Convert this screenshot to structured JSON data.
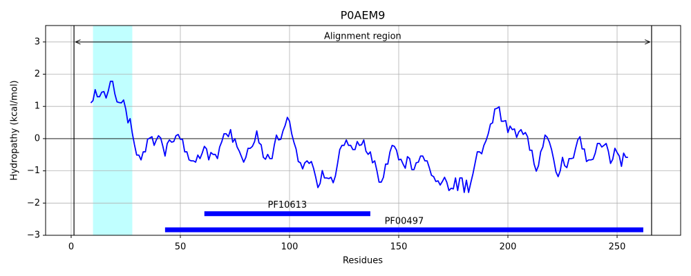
{
  "chart_data": {
    "type": "line",
    "title": "P0AEM9",
    "x_label": "Residues",
    "y_label": "Hydropathy (kcal/mol)",
    "x": [
      9,
      10,
      11,
      12,
      13,
      14,
      15,
      16,
      17,
      18,
      19,
      20,
      21,
      22,
      23,
      24,
      25,
      26,
      27,
      28,
      29,
      30,
      31,
      32,
      33,
      34,
      35,
      36,
      37,
      38,
      39,
      40,
      41,
      42,
      43,
      44,
      45,
      46,
      47,
      48,
      49,
      50,
      51,
      52,
      53,
      54,
      55,
      56,
      57,
      58,
      59,
      60,
      61,
      62,
      63,
      64,
      65,
      66,
      67,
      68,
      69,
      70,
      71,
      72,
      73,
      74,
      75,
      76,
      77,
      78,
      79,
      80,
      81,
      82,
      83,
      84,
      85,
      86,
      87,
      88,
      89,
      90,
      91,
      92,
      93,
      94,
      95,
      96,
      97,
      98,
      99,
      100,
      101,
      102,
      103,
      104,
      105,
      106,
      107,
      108,
      109,
      110,
      111,
      112,
      113,
      114,
      115,
      116,
      117,
      118,
      119,
      120,
      121,
      122,
      123,
      124,
      125,
      126,
      127,
      128,
      129,
      130,
      131,
      132,
      133,
      134,
      135,
      136,
      137,
      138,
      139,
      140,
      141,
      142,
      143,
      144,
      145,
      146,
      147,
      148,
      149,
      150,
      151,
      152,
      153,
      154,
      155,
      156,
      157,
      158,
      159,
      160,
      161,
      162,
      163,
      164,
      165,
      166,
      167,
      168,
      169,
      170,
      171,
      172,
      173,
      174,
      175,
      176,
      177,
      178,
      179,
      180,
      181,
      182,
      183,
      184,
      185,
      186,
      187,
      188,
      189,
      190,
      191,
      192,
      193,
      194,
      195,
      196,
      197,
      198,
      199,
      200,
      201,
      202,
      203,
      204,
      205,
      206,
      207,
      208,
      209,
      210,
      211,
      212,
      213,
      214,
      215,
      216,
      217,
      218,
      219,
      220,
      221,
      222,
      223,
      224,
      225,
      226,
      227,
      228,
      229,
      230,
      231,
      232,
      233,
      234,
      235,
      236,
      237,
      238,
      239,
      240,
      241,
      242,
      243,
      244,
      245,
      246,
      247,
      248,
      249,
      250,
      251,
      252,
      253,
      254,
      255
    ],
    "values": [
      1.11,
      1.18,
      1.52,
      1.3,
      1.3,
      1.44,
      1.46,
      1.26,
      1.48,
      1.78,
      1.78,
      1.39,
      1.14,
      1.12,
      1.11,
      1.2,
      0.92,
      0.49,
      0.62,
      0.17,
      -0.19,
      -0.51,
      -0.51,
      -0.66,
      -0.41,
      -0.41,
      -0.02,
      0.02,
      0.06,
      -0.21,
      -0.04,
      0.09,
      0.02,
      -0.24,
      -0.54,
      -0.15,
      -0.04,
      -0.11,
      -0.09,
      0.09,
      0.13,
      -0.02,
      -0.02,
      -0.41,
      -0.41,
      -0.66,
      -0.69,
      -0.69,
      -0.73,
      -0.51,
      -0.62,
      -0.45,
      -0.24,
      -0.32,
      -0.66,
      -0.43,
      -0.49,
      -0.49,
      -0.62,
      -0.26,
      -0.09,
      0.15,
      0.15,
      0.06,
      0.28,
      -0.11,
      0,
      -0.26,
      -0.39,
      -0.56,
      -0.73,
      -0.58,
      -0.3,
      -0.3,
      -0.24,
      -0.09,
      0.24,
      -0.13,
      -0.19,
      -0.58,
      -0.64,
      -0.49,
      -0.62,
      -0.62,
      -0.21,
      0.11,
      -0.04,
      -0.02,
      0.24,
      0.41,
      0.66,
      0.54,
      0.15,
      -0.11,
      -0.32,
      -0.71,
      -0.75,
      -0.94,
      -0.75,
      -0.69,
      -0.77,
      -0.71,
      -0.92,
      -1.2,
      -1.52,
      -1.39,
      -0.99,
      -1.22,
      -1.22,
      -1.24,
      -1.2,
      -1.37,
      -1.16,
      -0.77,
      -0.34,
      -0.21,
      -0.21,
      -0.04,
      -0.21,
      -0.21,
      -0.34,
      -0.34,
      -0.09,
      -0.21,
      -0.19,
      -0.04,
      -0.39,
      -0.49,
      -0.41,
      -0.75,
      -0.69,
      -0.99,
      -1.35,
      -1.35,
      -1.2,
      -0.79,
      -0.79,
      -0.41,
      -0.21,
      -0.24,
      -0.36,
      -0.66,
      -0.64,
      -0.79,
      -0.92,
      -0.56,
      -0.62,
      -0.96,
      -0.96,
      -0.75,
      -0.73,
      -0.54,
      -0.54,
      -0.69,
      -0.69,
      -0.9,
      -1.14,
      -1.18,
      -1.33,
      -1.31,
      -1.44,
      -1.33,
      -1.2,
      -1.35,
      -1.61,
      -1.54,
      -1.56,
      -1.22,
      -1.61,
      -1.22,
      -1.22,
      -1.67,
      -1.29,
      -1.67,
      -1.37,
      -1.09,
      -0.75,
      -0.41,
      -0.41,
      -0.47,
      -0.21,
      -0.06,
      0.15,
      0.45,
      0.49,
      0.92,
      0.94,
      0.99,
      0.54,
      0.54,
      0.56,
      0.19,
      0.39,
      0.28,
      0.3,
      0.04,
      0.21,
      0.28,
      0.13,
      0.19,
      0.06,
      -0.36,
      -0.36,
      -0.79,
      -1.01,
      -0.84,
      -0.41,
      -0.26,
      0.11,
      0.04,
      -0.11,
      -0.34,
      -0.66,
      -1.03,
      -1.18,
      -0.99,
      -0.58,
      -0.84,
      -0.9,
      -0.62,
      -0.62,
      -0.6,
      -0.3,
      -0.04,
      0.06,
      -0.32,
      -0.32,
      -0.71,
      -0.66,
      -0.66,
      -0.64,
      -0.45,
      -0.15,
      -0.15,
      -0.26,
      -0.21,
      -0.15,
      -0.39,
      -0.77,
      -0.64,
      -0.3,
      -0.43,
      -0.54,
      -0.86,
      -0.45,
      -0.58,
      -0.58
    ],
    "color": "#0000ff",
    "xlim": [
      -11.7,
      279.1
    ],
    "ylim": [
      -3,
      3.51
    ],
    "xticks": [
      0,
      50,
      100,
      150,
      200,
      250
    ],
    "yticks": [
      {
        "value": -3,
        "label": "−3"
      },
      {
        "value": -2,
        "label": "−2"
      },
      {
        "value": -1,
        "label": "−1"
      },
      0,
      1,
      2,
      3
    ],
    "grid": true,
    "span": [
      10,
      28
    ],
    "span_color": "#c0ffff",
    "vlines": [
      1.3,
      265.8
    ],
    "hline": 0,
    "annotation": {
      "text": "Alignment region",
      "x": [
        2,
        265
      ],
      "y": 3
    },
    "domains": [
      {
        "name": "PF10613",
        "start": 61,
        "end": 137,
        "y": -2.33
      },
      {
        "name": "PF00497",
        "start": 43,
        "end": 262,
        "y": -2.83
      }
    ],
    "domain_color": "#0000ff"
  }
}
